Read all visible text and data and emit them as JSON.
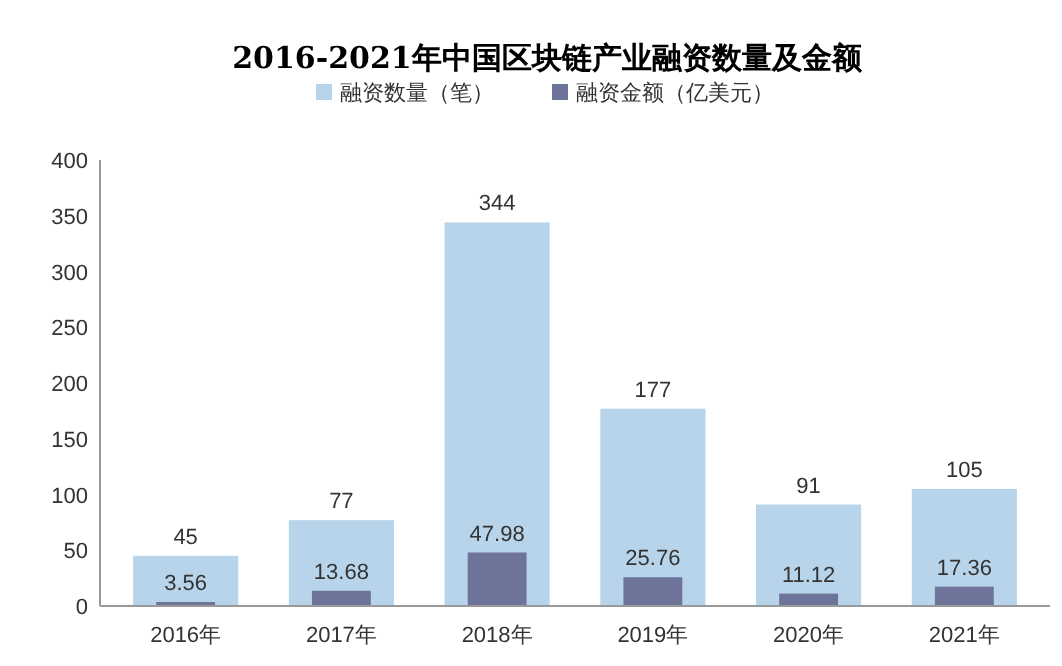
{
  "chart_data": {
    "type": "bar",
    "title": "2016-2021年中国区块链产业融资数量及金额",
    "categories": [
      "2016年",
      "2017年",
      "2018年",
      "2019年",
      "2020年",
      "2021年"
    ],
    "series": [
      {
        "name": "融资数量（笔）",
        "color": "#b7d4ea",
        "values": [
          45,
          77,
          344,
          177,
          91,
          105
        ]
      },
      {
        "name": "融资金额（亿美元）",
        "color": "#6e7399",
        "values": [
          3.56,
          13.68,
          47.98,
          25.76,
          11.12,
          17.36
        ]
      }
    ],
    "ylim": [
      0,
      400
    ],
    "yticks": [
      0,
      50,
      100,
      150,
      200,
      250,
      300,
      350,
      400
    ],
    "legend": "top",
    "data_labels": true
  }
}
